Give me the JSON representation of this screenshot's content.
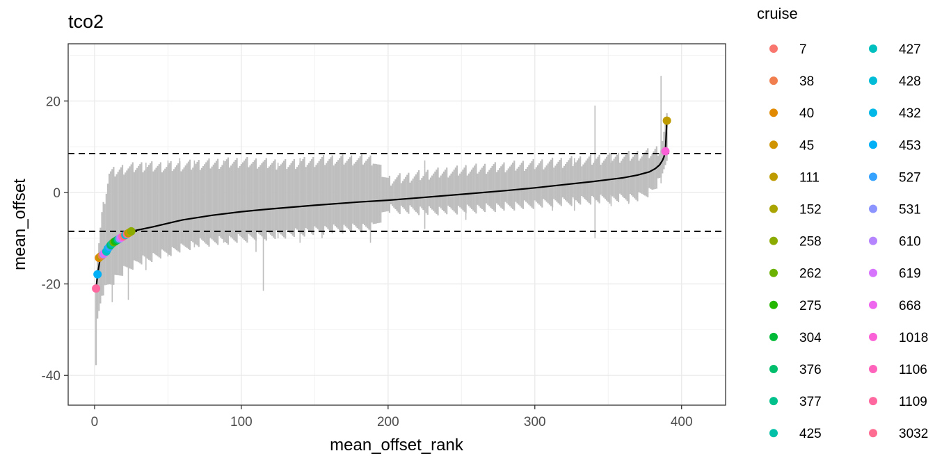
{
  "chart_data": {
    "type": "scatter",
    "title": "tco2",
    "xlabel": "mean_offset_rank",
    "ylabel": "mean_offset",
    "xlim": [
      -18,
      430
    ],
    "ylim": [
      -46.5,
      32.5
    ],
    "x_ticks": [
      0,
      100,
      200,
      300,
      400
    ],
    "x_tick_labels": [
      "0",
      "100",
      "200",
      "300",
      "400"
    ],
    "y_ticks": [
      -40,
      -20,
      0,
      20
    ],
    "y_tick_labels": [
      "-40",
      "-20",
      "0",
      "20"
    ],
    "grid": true,
    "n_cruises": 390,
    "threshold_lines": [
      8.5,
      -8.5
    ],
    "mean_line": {
      "color": "#000000",
      "x": [
        1,
        2,
        4,
        8,
        15,
        20,
        25,
        40,
        60,
        80,
        100,
        120,
        150,
        180,
        200,
        220,
        250,
        280,
        300,
        320,
        340,
        360,
        370,
        378,
        382,
        385,
        387,
        388,
        389,
        390
      ],
      "y": [
        -21,
        -18,
        -14,
        -12.5,
        -10.5,
        -9.5,
        -8.5,
        -7.5,
        -6,
        -5,
        -4.2,
        -3.6,
        -2.8,
        -2.1,
        -1.7,
        -1.2,
        -0.4,
        0.4,
        1,
        1.7,
        2.4,
        3.2,
        3.8,
        4.5,
        5.2,
        6,
        7,
        7.8,
        9,
        15.7
      ]
    },
    "spread_band": {
      "color": "#bebebe",
      "x": [
        1,
        2,
        5,
        10,
        20,
        30,
        50,
        70,
        100,
        130,
        160,
        190,
        200,
        230,
        260,
        300,
        340,
        370,
        380,
        386,
        390
      ],
      "lower": [
        -38.5,
        -28,
        -22,
        -20,
        -17,
        -15,
        -13,
        -11,
        -10,
        -9,
        -8,
        -7.5,
        -3.5,
        -4,
        -3.5,
        -2.5,
        -1.5,
        -1,
        0.5,
        3,
        8
      ],
      "upper": [
        -20,
        -14,
        -5,
        4,
        5,
        5.5,
        5.5,
        6,
        6.5,
        6,
        7,
        7,
        2.5,
        4,
        5,
        6,
        7,
        8,
        8.5,
        9.5,
        16
      ]
    },
    "spikes": [
      {
        "x": 12,
        "lower": -24,
        "upper": 1
      },
      {
        "x": 23,
        "lower": -23.5,
        "upper": 4
      },
      {
        "x": 35,
        "lower": -17,
        "upper": 6.5
      },
      {
        "x": 50,
        "lower": -14,
        "upper": 7
      },
      {
        "x": 58,
        "lower": -11,
        "upper": 7.5
      },
      {
        "x": 68,
        "lower": -12,
        "upper": 7
      },
      {
        "x": 88,
        "lower": -11,
        "upper": 7
      },
      {
        "x": 110,
        "lower": -13,
        "upper": 6.5
      },
      {
        "x": 115,
        "lower": -21.5,
        "upper": 5
      },
      {
        "x": 125,
        "lower": -10,
        "upper": 6.5
      },
      {
        "x": 140,
        "lower": -11,
        "upper": 7.5
      },
      {
        "x": 155,
        "lower": -10,
        "upper": 7.5
      },
      {
        "x": 188,
        "lower": -11,
        "upper": 7.5
      },
      {
        "x": 225,
        "lower": -8,
        "upper": 7
      },
      {
        "x": 253,
        "lower": -6,
        "upper": 6
      },
      {
        "x": 312,
        "lower": -4,
        "upper": 7
      },
      {
        "x": 327,
        "lower": -4,
        "upper": 7.5
      },
      {
        "x": 341,
        "lower": -10,
        "upper": 19
      },
      {
        "x": 352,
        "lower": -3,
        "upper": 8.5
      },
      {
        "x": 364,
        "lower": -2.5,
        "upper": 7.5
      },
      {
        "x": 386,
        "lower": 2,
        "upper": 25.5
      }
    ],
    "points": [
      {
        "cruise": "1109",
        "x": 1,
        "y": -21.0
      },
      {
        "cruise": "453",
        "x": 2,
        "y": -17.9
      },
      {
        "cruise": "40",
        "x": 3,
        "y": -14.3
      },
      {
        "cruise": "111",
        "x": 4,
        "y": -14.0
      },
      {
        "cruise": "38",
        "x": 5,
        "y": -13.8
      },
      {
        "cruise": "610",
        "x": 6,
        "y": -13.5
      },
      {
        "cruise": "668",
        "x": 7,
        "y": -13.2
      },
      {
        "cruise": "427",
        "x": 8,
        "y": -12.9
      },
      {
        "cruise": "432",
        "x": 9,
        "y": -12.3
      },
      {
        "cruise": "527",
        "x": 10,
        "y": -11.9
      },
      {
        "cruise": "376",
        "x": 11,
        "y": -11.5
      },
      {
        "cruise": "425",
        "x": 12,
        "y": -11.2
      },
      {
        "cruise": "262",
        "x": 13,
        "y": -10.9
      },
      {
        "cruise": "275",
        "x": 14,
        "y": -10.7
      },
      {
        "cruise": "304",
        "x": 15,
        "y": -10.5
      },
      {
        "cruise": "377",
        "x": 16,
        "y": -10.3
      },
      {
        "cruise": "531",
        "x": 17,
        "y": -10.1
      },
      {
        "cruise": "619",
        "x": 18,
        "y": -9.9
      },
      {
        "cruise": "1106",
        "x": 19,
        "y": -9.7
      },
      {
        "cruise": "7",
        "x": 20,
        "y": -9.5
      },
      {
        "cruise": "428",
        "x": 21,
        "y": -9.3
      },
      {
        "cruise": "3032",
        "x": 22,
        "y": -9.1
      },
      {
        "cruise": "152",
        "x": 23,
        "y": -8.9
      },
      {
        "cruise": "45",
        "x": 24,
        "y": -8.7
      },
      {
        "cruise": "258",
        "x": 25,
        "y": -8.5
      },
      {
        "cruise": "1018",
        "x": 389,
        "y": 9.0
      },
      {
        "cruise": "111",
        "x": 390,
        "y": 15.7
      }
    ],
    "legend": {
      "title": "cruise",
      "placement": "right",
      "entries": [
        {
          "label": "7",
          "color": "#F8766D"
        },
        {
          "label": "38",
          "color": "#F17E4E"
        },
        {
          "label": "40",
          "color": "#E18A00"
        },
        {
          "label": "45",
          "color": "#CF9400"
        },
        {
          "label": "111",
          "color": "#BE9C00"
        },
        {
          "label": "152",
          "color": "#A9A400"
        },
        {
          "label": "258",
          "color": "#8CAB00"
        },
        {
          "label": "262",
          "color": "#6BB100"
        },
        {
          "label": "275",
          "color": "#24B700"
        },
        {
          "label": "304",
          "color": "#00BA38"
        },
        {
          "label": "376",
          "color": "#00BE6C"
        },
        {
          "label": "377",
          "color": "#00C08B"
        },
        {
          "label": "425",
          "color": "#00C1A7"
        },
        {
          "label": "427",
          "color": "#00C0BF"
        },
        {
          "label": "428",
          "color": "#00BCD6"
        },
        {
          "label": "432",
          "color": "#00B8E7"
        },
        {
          "label": "453",
          "color": "#00B0F6"
        },
        {
          "label": "527",
          "color": "#35A2FF"
        },
        {
          "label": "531",
          "color": "#8C94FF"
        },
        {
          "label": "610",
          "color": "#B584FF"
        },
        {
          "label": "619",
          "color": "#D774FD"
        },
        {
          "label": "668",
          "color": "#EE66EE"
        },
        {
          "label": "1018",
          "color": "#FB61D7"
        },
        {
          "label": "1106",
          "color": "#FE62BA"
        },
        {
          "label": "1109",
          "color": "#FF689F"
        },
        {
          "label": "3032",
          "color": "#FF6C91"
        }
      ]
    }
  }
}
